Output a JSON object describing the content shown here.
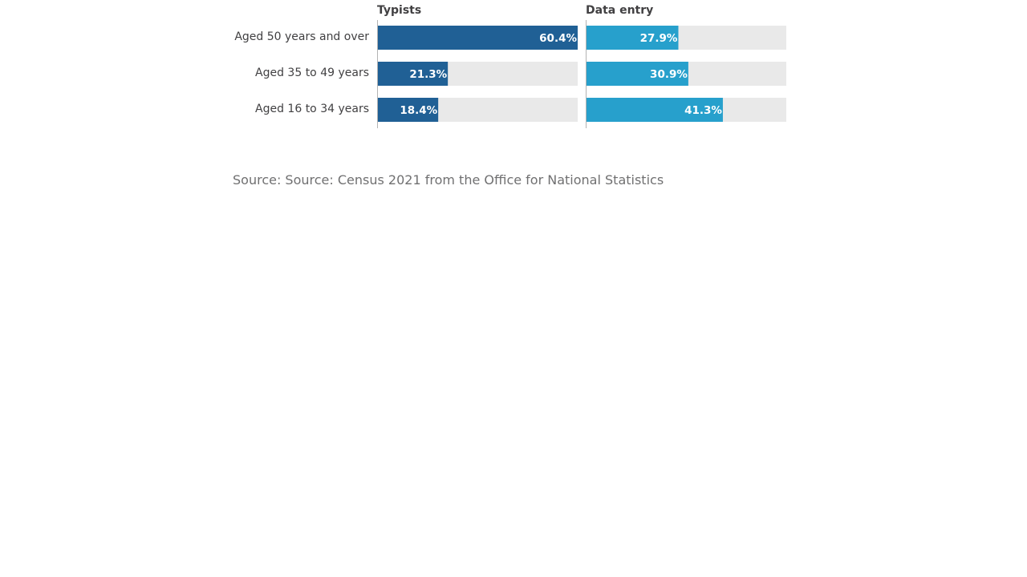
{
  "chart_data": {
    "type": "bar",
    "orientation": "horizontal",
    "layout": "small-multiples",
    "categories": [
      "Aged 50 years and over",
      "Aged 35 to 49 years",
      "Aged 16 to 34 years"
    ],
    "series": [
      {
        "name": "Typists",
        "values": [
          60.4,
          21.3,
          18.4
        ],
        "labels": [
          "60.4%",
          "21.3%",
          "18.4%"
        ],
        "color": "#206095"
      },
      {
        "name": "Data entry",
        "values": [
          27.9,
          30.9,
          41.3
        ],
        "labels": [
          "27.9%",
          "30.9%",
          "41.3%"
        ],
        "color": "#27a0cc"
      }
    ],
    "xlim": [
      0,
      60.4
    ],
    "unit": "%",
    "background_bar_color": "#e9e9e9",
    "label_dark_color": "#222222",
    "label_light_color": "#ffffff"
  },
  "source": "Source: Source: Census 2021 from the Office for National Statistics"
}
